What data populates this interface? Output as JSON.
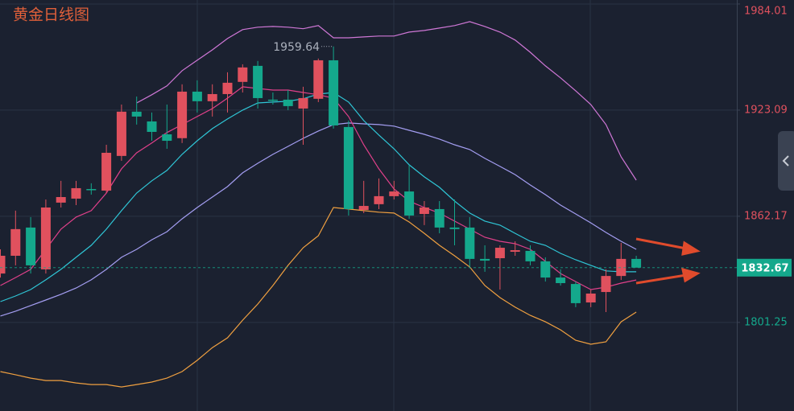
{
  "chart_data": {
    "type": "candlestick",
    "title": "黄金日线图",
    "categories": [
      null,
      null,
      null,
      null,
      null,
      null,
      null,
      null,
      null,
      null,
      null,
      null,
      null,
      null,
      null,
      null,
      null,
      null,
      null,
      null,
      null,
      null,
      null,
      null,
      null,
      null,
      null,
      null,
      null,
      null,
      null,
      null,
      null,
      null,
      null,
      null,
      null,
      null,
      null,
      null,
      null,
      null,
      null
    ],
    "candles": {
      "open": [
        1829.3,
        1839.5,
        1855.7,
        1831.7,
        1870.0,
        1872.3,
        1877.8,
        1876.9,
        1896.8,
        1922.2,
        1916.6,
        1909.2,
        1907.0,
        1933.7,
        1928.2,
        1932.3,
        1939.3,
        1948.5,
        1929.1,
        1929.1,
        1924.0,
        1929.6,
        1951.7,
        1913.4,
        1865.8,
        1869.1,
        1873.7,
        1876.4,
        1863.5,
        1866.3,
        1855.7,
        1855.7,
        1837.7,
        1838.1,
        1841.8,
        1842.3,
        1836.3,
        1827.0,
        1823.3,
        1812.7,
        1818.7,
        1827.9,
        1837.7
      ],
      "high": [
        1843.2,
        1865.4,
        1861.7,
        1871.8,
        1882.5,
        1882.5,
        1881.1,
        1903.2,
        1926.3,
        1930.9,
        1921.7,
        1926.3,
        1937.9,
        1940.2,
        1937.9,
        1944.8,
        1949.4,
        1951.3,
        1933.2,
        1934.6,
        1936.5,
        1952.7,
        1959.64,
        1917.1,
        1882.5,
        1883.9,
        1882.5,
        1891.7,
        1870.9,
        1870.9,
        1871.8,
        1861.7,
        1845.5,
        1845.5,
        1847.8,
        1845.5,
        1838.6,
        1831.7,
        1824.7,
        1820.1,
        1831.7,
        1846.9,
        1839.5
      ],
      "low": [
        1827.0,
        1834.0,
        1829.3,
        1829.3,
        1867.2,
        1868.6,
        1874.6,
        1875.5,
        1894.0,
        1914.8,
        1905.5,
        1900.9,
        1904.2,
        1921.7,
        1919.4,
        1921.7,
        1933.2,
        1924.0,
        1926.3,
        1923.1,
        1903.2,
        1927.7,
        1912.5,
        1862.6,
        1864.0,
        1866.3,
        1871.8,
        1860.7,
        1857.1,
        1852.4,
        1845.5,
        1833.1,
        1830.3,
        1820.1,
        1839.5,
        1834.0,
        1824.7,
        1822.4,
        1810.0,
        1810.0,
        1807.2,
        1825.6,
        1833.1
      ],
      "close": [
        1839.5,
        1854.8,
        1834.0,
        1867.2,
        1873.2,
        1878.3,
        1877.4,
        1898.6,
        1922.2,
        1919.4,
        1910.6,
        1905.5,
        1933.7,
        1928.2,
        1932.3,
        1938.8,
        1947.6,
        1930.0,
        1928.6,
        1925.4,
        1930.0,
        1951.7,
        1914.3,
        1866.3,
        1868.1,
        1873.7,
        1876.4,
        1862.6,
        1867.2,
        1855.7,
        1854.8,
        1837.7,
        1836.7,
        1844.1,
        1842.7,
        1836.3,
        1827.0,
        1823.8,
        1812.3,
        1817.8,
        1827.9,
        1837.7,
        1832.67
      ]
    },
    "up_color": "#e0515e",
    "down_color": "#14a88c",
    "lines": [
      {
        "color": "#cf77d6",
        "values": [
          null,
          null,
          null,
          null,
          null,
          null,
          null,
          null,
          null,
          1927.2,
          1931.9,
          1937.0,
          1945.7,
          1951.7,
          1957.7,
          1964.2,
          1969.3,
          1970.7,
          1971.1,
          1970.7,
          1969.8,
          1971.6,
          1964.6,
          1964.6,
          1965.1,
          1965.6,
          1965.6,
          1967.9,
          1968.8,
          1970.2,
          1971.6,
          1973.9,
          1971.1,
          1967.9,
          1963.3,
          1956.3,
          1948.5,
          1941.6,
          1934.2,
          1926.3,
          1914.8,
          1896.3,
          1882.9
        ]
      },
      {
        "color": "#a49ef2",
        "values": [
          1804.9,
          1807.7,
          1810.9,
          1814.1,
          1817.4,
          1821.0,
          1825.7,
          1831.7,
          1838.6,
          1843.2,
          1848.7,
          1853.3,
          1860.7,
          1867.2,
          1873.2,
          1879.2,
          1887.1,
          1892.6,
          1897.7,
          1902.3,
          1906.9,
          1911.1,
          1914.8,
          1915.7,
          1915.2,
          1914.8,
          1913.9,
          1911.5,
          1909.2,
          1906.5,
          1903.2,
          1900.5,
          1895.4,
          1890.8,
          1886.1,
          1880.1,
          1874.6,
          1868.6,
          1863.5,
          1858.4,
          1852.9,
          1847.8,
          1843.2
        ]
      },
      {
        "color": "#f0a040",
        "values": [
          1773.0,
          1771.2,
          1769.3,
          1767.9,
          1767.9,
          1766.5,
          1765.6,
          1765.6,
          1764.2,
          1765.6,
          1767.0,
          1769.3,
          1773.0,
          1779.5,
          1786.8,
          1792.4,
          1802.5,
          1811.8,
          1822.4,
          1834.0,
          1844.1,
          1851.0,
          1867.2,
          1866.3,
          1865.4,
          1864.5,
          1864.0,
          1858.9,
          1852.4,
          1845.5,
          1839.5,
          1833.1,
          1822.4,
          1815.5,
          1810.0,
          1805.3,
          1801.6,
          1797.0,
          1791.0,
          1788.7,
          1790.1,
          1801.6,
          1807.2
        ]
      },
      {
        "color": "#2fc6d6",
        "values": [
          1813.2,
          1816.4,
          1820.1,
          1825.7,
          1831.7,
          1838.6,
          1845.5,
          1854.8,
          1865.4,
          1875.5,
          1882.5,
          1888.5,
          1897.7,
          1905.5,
          1912.5,
          1918.0,
          1923.1,
          1927.2,
          1927.7,
          1928.2,
          1929.6,
          1932.3,
          1933.2,
          1927.7,
          1917.1,
          1908.8,
          1900.9,
          1891.7,
          1884.8,
          1878.8,
          1870.9,
          1864.0,
          1859.4,
          1857.1,
          1852.4,
          1847.8,
          1845.5,
          1840.9,
          1837.2,
          1834.0,
          1830.8,
          1830.3,
          1830.3
        ]
      },
      {
        "color": "#e0408a",
        "values": [
          1822.4,
          1827.0,
          1831.7,
          1843.2,
          1854.8,
          1861.7,
          1865.4,
          1875.5,
          1889.4,
          1898.6,
          1904.2,
          1910.2,
          1914.8,
          1919.4,
          1924.0,
          1930.0,
          1936.5,
          1935.5,
          1934.6,
          1934.6,
          1933.2,
          1931.9,
          1930.0,
          1919.4,
          1903.2,
          1889.4,
          1877.8,
          1870.9,
          1867.2,
          1864.0,
          1859.4,
          1854.8,
          1850.1,
          1847.8,
          1846.4,
          1843.2,
          1836.3,
          1829.3,
          1824.7,
          1820.1,
          1821.5,
          1823.8,
          1825.6
        ]
      }
    ],
    "last_price": 1832.67,
    "ylim": [
      1750.4,
      1986.3
    ],
    "yticks": [
      1984.01,
      1923.09,
      1862.17,
      1801.25
    ],
    "grid": true
  }
}
